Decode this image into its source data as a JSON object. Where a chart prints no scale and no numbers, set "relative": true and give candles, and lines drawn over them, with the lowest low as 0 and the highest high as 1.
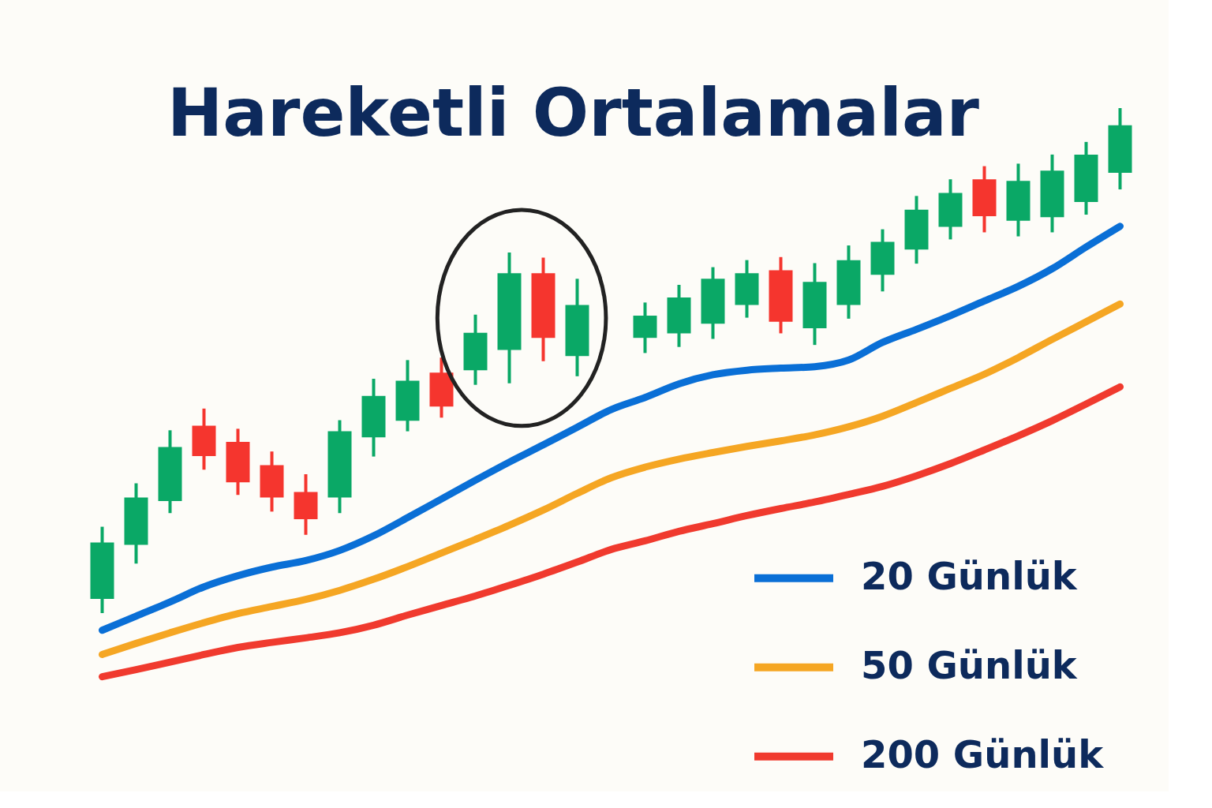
{
  "chart_data": {
    "type": "candlestick",
    "title": "Hareketli Ortalamalar",
    "relative": true,
    "tick_labels": false,
    "legend": "bottom right",
    "categories": [
      null,
      null,
      null,
      null,
      null,
      null,
      null,
      null,
      null,
      null,
      null,
      null,
      null,
      null,
      null,
      null,
      null,
      null,
      null,
      null,
      null,
      null,
      null,
      null,
      null,
      null,
      null,
      null,
      null,
      null,
      null
    ],
    "ohlc": [
      [
        0.028,
        0.171,
        0,
        0.14
      ],
      [
        0.135,
        0.257,
        0.098,
        0.229
      ],
      [
        0.222,
        0.362,
        0.198,
        0.329
      ],
      [
        0.371,
        0.405,
        0.284,
        0.311
      ],
      [
        0.339,
        0.365,
        0.234,
        0.259
      ],
      [
        0.293,
        0.32,
        0.201,
        0.229
      ],
      [
        0.24,
        0.275,
        0.155,
        0.186
      ],
      [
        0.229,
        0.382,
        0.198,
        0.36
      ],
      [
        0.348,
        0.464,
        0.31,
        0.43
      ],
      [
        0.381,
        0.501,
        0.36,
        0.46
      ],
      [
        0.476,
        0.506,
        0.387,
        0.409
      ],
      [
        0.481,
        0.591,
        0.452,
        0.555
      ],
      [
        0.521,
        0.714,
        0.455,
        0.673
      ],
      [
        0.673,
        0.704,
        0.499,
        0.545
      ],
      [
        0.509,
        0.662,
        0.469,
        0.61
      ],
      null,
      [
        0.545,
        0.615,
        0.515,
        0.589
      ],
      [
        0.554,
        0.65,
        0.527,
        0.625
      ],
      [
        0.573,
        0.685,
        0.543,
        0.662
      ],
      [
        0.61,
        0.699,
        0.585,
        0.673
      ],
      [
        0.679,
        0.705,
        0.554,
        0.577
      ],
      [
        0.564,
        0.693,
        0.531,
        0.656
      ],
      [
        0.61,
        0.728,
        0.583,
        0.699
      ],
      [
        0.67,
        0.76,
        0.637,
        0.735
      ],
      [
        0.72,
        0.826,
        0.692,
        0.799
      ],
      [
        0.765,
        0.859,
        0.74,
        0.832
      ],
      [
        0.859,
        0.885,
        0.754,
        0.786
      ],
      [
        0.777,
        0.89,
        0.746,
        0.856
      ],
      [
        0.784,
        0.908,
        0.754,
        0.876
      ],
      [
        0.814,
        0.933,
        0.789,
        0.908
      ],
      [
        0.872,
        1,
        0.839,
        0.966
      ]
    ],
    "colors": [
      "#0aa866",
      "#0aa866",
      "#0aa866",
      "#f5352e",
      "#f5352e",
      "#f5352e",
      "#f5352e",
      "#0aa866",
      "#0aa866",
      "#0aa866",
      "#f5352e",
      "#0aa866",
      "#0aa866",
      "#f5352e",
      "#0aa866",
      null,
      "#0aa866",
      "#0aa866",
      "#0aa866",
      "#0aa866",
      "#f5352e",
      "#0aa866",
      "#0aa866",
      "#0aa866",
      "#0aa866",
      "#0aa866",
      "#f5352e",
      "#0aa866",
      "#0aa866",
      "#0aa866",
      "#0aa866"
    ],
    "series": [
      {
        "name": "20 Günlük",
        "type": "line",
        "color": "#0a6fd6",
        "values": [
          -0.034,
          -0.006,
          0.022,
          0.052,
          0.074,
          0.091,
          0.104,
          0.124,
          0.153,
          0.189,
          0.226,
          0.263,
          0.299,
          0.333,
          0.368,
          0.403,
          0.427,
          0.454,
          0.472,
          0.481,
          0.485,
          0.488,
          0.501,
          0.536,
          0.562,
          0.589,
          0.618,
          0.647,
          0.682,
          0.725,
          0.766
        ]
      },
      {
        "name": "50 Günlük",
        "type": "line",
        "color": "#f5a623",
        "values": [
          -0.082,
          -0.06,
          -0.039,
          -0.019,
          -0.001,
          0.013,
          0.027,
          0.045,
          0.067,
          0.092,
          0.119,
          0.146,
          0.174,
          0.204,
          0.237,
          0.268,
          0.289,
          0.305,
          0.318,
          0.33,
          0.341,
          0.353,
          0.369,
          0.39,
          0.417,
          0.445,
          0.473,
          0.506,
          0.542,
          0.577,
          0.612
        ]
      },
      {
        "name": "200 Günlük",
        "type": "line",
        "color": "#f03a2e",
        "values": [
          -0.126,
          -0.112,
          -0.097,
          -0.082,
          -0.068,
          -0.058,
          -0.049,
          -0.039,
          -0.024,
          -0.004,
          0.015,
          0.034,
          0.055,
          0.077,
          0.101,
          0.126,
          0.143,
          0.162,
          0.177,
          0.193,
          0.207,
          0.22,
          0.235,
          0.251,
          0.272,
          0.296,
          0.323,
          0.351,
          0.381,
          0.414,
          0.448
        ]
      }
    ]
  }
}
